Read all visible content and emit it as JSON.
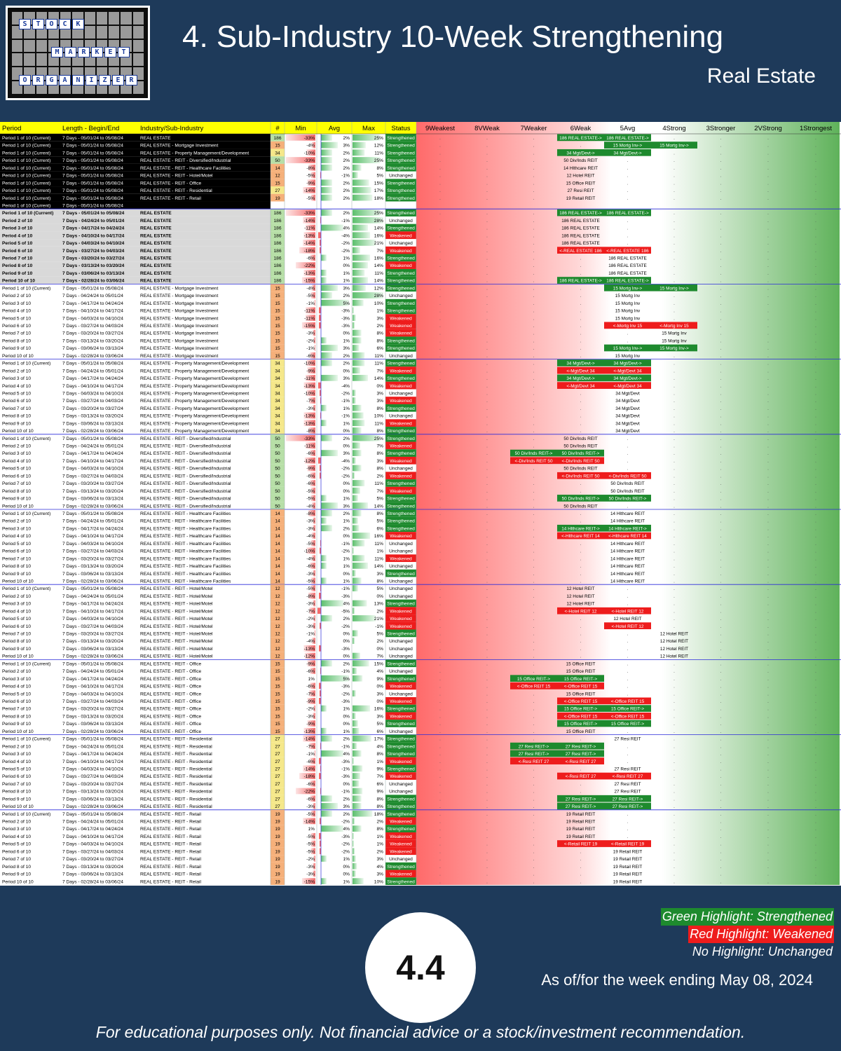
{
  "brand": {
    "rows": [
      [
        "S",
        "T",
        "O",
        "C",
        "K"
      ],
      [
        "M",
        "A",
        "R",
        "K",
        "E",
        "T"
      ],
      [
        "O",
        "R",
        "G",
        "A",
        "N",
        "I",
        "Z",
        "E",
        "R"
      ]
    ]
  },
  "header": {
    "title": "4. Sub-Industry 10-Week Strengthening",
    "subtitle": "Real Estate"
  },
  "table": {
    "columns": [
      "Period",
      "Length - Begin/End",
      "Industry/Sub-Industry",
      "#",
      "Min",
      "Avg",
      "Max",
      "Status",
      "9Weakest",
      "8VWeak",
      "7Weaker",
      "6Weak",
      "5Avg",
      "4Strong",
      "3Stronger",
      "2VStrong",
      "1Strongest"
    ],
    "ranges": [
      "05/01/24 to 05/08/24",
      "04/24/24 to 05/01/24",
      "04/17/24 to 04/24/24",
      "04/10/24 to 04/17/24",
      "04/03/24 to 04/10/24",
      "03/27/24 to 04/03/24",
      "03/20/24 to 03/27/24",
      "03/13/24 to 03/20/24",
      "03/06/24 to 03/13/24",
      "02/28/24 to 03/06/24"
    ],
    "period_labels": [
      "Period 1 of 10 (Current)",
      "Period 2 of 10",
      "Period 3 of 10",
      "Period 4 of 10",
      "Period 5 of 10",
      "Period 6 of 10",
      "Period 7 of 10",
      "Period 8 of 10",
      "Period 9 of 10",
      "Period 10 of 10"
    ],
    "length_prefix": "7 Days - ",
    "summary": [
      {
        "ind": "REAL ESTATE",
        "n": 186,
        "min": "-33%",
        "avg": "2%",
        "max": "25%",
        "st": "Strengthened",
        "rank": [
          "186 REAL ESTATE->",
          "186 REAL ESTATE->"
        ]
      },
      {
        "ind": "REAL ESTATE - Mortgage Investment",
        "n": 15,
        "min": "-4%",
        "avg": "3%",
        "max": "12%",
        "st": "Strengthened",
        "rank": [
          "15 Mortg Inv->",
          "15 Mortg Inv->"
        ]
      },
      {
        "ind": "REAL ESTATE - Property Management/Development",
        "n": 34,
        "min": "-10%",
        "avg": "2%",
        "max": "11%",
        "st": "Strengthened",
        "rank": [
          "34 Mgt/Devt->",
          "34 Mgt/Devt->"
        ]
      },
      {
        "ind": "REAL ESTATE - REIT - Diversified/Industrial",
        "n": 50,
        "min": "-33%",
        "avg": "2%",
        "max": "25%",
        "st": "Strengthened",
        "rank": [
          "50 Div/Inds REIT"
        ]
      },
      {
        "ind": "REAL ESTATE - REIT - Healthcare Facilities",
        "n": 14,
        "min": "-8%",
        "avg": "2%",
        "max": "8%",
        "st": "Strengthened",
        "rank": [
          "14 Hlthcare REIT"
        ]
      },
      {
        "ind": "REAL ESTATE - REIT - Hotel/Motel",
        "n": 12,
        "min": "-5%",
        "avg": "-1%",
        "max": "5%",
        "st": "Unchanged",
        "rank": [
          "12 Hotel REIT"
        ]
      },
      {
        "ind": "REAL ESTATE - REIT - Office",
        "n": 15,
        "min": "-9%",
        "avg": "2%",
        "max": "15%",
        "st": "Strengthened",
        "rank": [
          "15 Office REIT"
        ]
      },
      {
        "ind": "REAL ESTATE - REIT - Residential",
        "n": 27,
        "min": "-14%",
        "avg": "2%",
        "max": "17%",
        "st": "Strengthened",
        "rank": [
          "27 Resi REIT"
        ]
      },
      {
        "ind": "REAL ESTATE - REIT - Retail",
        "n": 19,
        "min": "-5%",
        "avg": "2%",
        "max": "18%",
        "st": "Strengthened",
        "rank": [
          "19 Retail REIT"
        ]
      }
    ],
    "groups": [
      {
        "ind": "REAL ESTATE",
        "n": 186,
        "rows": [
          [
            "-33%",
            "2%",
            "25%",
            "Strengthened",
            "186 REAL ESTATE->",
            "186 REAL ESTATE->"
          ],
          [
            "-14%",
            "-1%",
            "28%",
            "Unchanged",
            "186 REAL ESTATE",
            ""
          ],
          [
            "-11%",
            "4%",
            "14%",
            "Strengthened",
            "186 REAL ESTATE",
            ""
          ],
          [
            "-13%",
            "-4%",
            "16%",
            "Weakened",
            "186 REAL ESTATE",
            ""
          ],
          [
            "-14%",
            "-2%",
            "21%",
            "Unchanged",
            "186 REAL ESTATE",
            ""
          ],
          [
            "-18%",
            "-2%",
            "7%",
            "Weakened",
            "<-REAL ESTATE 186",
            "<-REAL ESTATE 186"
          ],
          [
            "-6%",
            "1%",
            "16%",
            "Strengthened",
            "",
            "186 REAL ESTATE"
          ],
          [
            "-22%",
            "0%",
            "14%",
            "Weakened",
            "",
            "186 REAL ESTATE"
          ],
          [
            "-13%",
            "1%",
            "11%",
            "Strengthened",
            "",
            "186 REAL ESTATE"
          ],
          [
            "-15%",
            "1%",
            "14%",
            "Strengthened",
            "186 REAL ESTATE->",
            "186 REAL ESTATE->"
          ]
        ]
      },
      {
        "ind": "REAL ESTATE - Mortgage Investment",
        "n": 15,
        "rows": [
          [
            "-4%",
            "3%",
            "12%",
            "Strengthened",
            "15 Mortg Inv->",
            "15 Mortg Inv->"
          ],
          [
            "-5%",
            "2%",
            "28%",
            "Unchanged",
            "15 Mortg Inv",
            ""
          ],
          [
            "-1%",
            "5%",
            "10%",
            "Strengthened",
            "15 Mortg Inv",
            ""
          ],
          [
            "-11%",
            "-3%",
            "1%",
            "Strengthened",
            "15 Mortg Inv",
            ""
          ],
          [
            "-11%",
            "-3%",
            "3%",
            "Weakened",
            "15 Mortg Inv",
            ""
          ],
          [
            "-15%",
            "-3%",
            "2%",
            "Weakened",
            "<-Mortg Inv 15",
            "<-Mortg Inv 15"
          ],
          [
            "-3%",
            "0%",
            "8%",
            "Weakened",
            "",
            "15 Mortg Inv"
          ],
          [
            "-2%",
            "1%",
            "8%",
            "Strengthened",
            "",
            "15 Mortg Inv"
          ],
          [
            "-1%",
            "3%",
            "6%",
            "Strengthened",
            "15 Mortg Inv->",
            "15 Mortg Inv->"
          ],
          [
            "-6%",
            "2%",
            "11%",
            "Unchanged",
            "15 Mortg Inv",
            ""
          ]
        ]
      },
      {
        "ind": "REAL ESTATE - Property Management/Development",
        "n": 34,
        "rows": [
          [
            "-10%",
            "2%",
            "11%",
            "Strengthened",
            "34 Mgt/Devt->",
            "34 Mgt/Devt->"
          ],
          [
            "-9%",
            "0%",
            "7%",
            "Weakened",
            "<-Mgt/Devt 34",
            "<-Mgt/Devt 34"
          ],
          [
            "-11%",
            "3%",
            "14%",
            "Strengthened",
            "34 Mgt/Devt->",
            "34 Mgt/Devt->"
          ],
          [
            "-13%",
            "-4%",
            "0%",
            "Weakened",
            "<-Mgt/Devt 34",
            "<-Mgt/Devt 34"
          ],
          [
            "-10%",
            "-2%",
            "3%",
            "Unchanged",
            "",
            "34 Mgt/Devt"
          ],
          [
            "-7%",
            "-1%",
            "3%",
            "Weakened",
            "",
            "34 Mgt/Devt"
          ],
          [
            "-3%",
            "1%",
            "8%",
            "Strengthened",
            "",
            "34 Mgt/Devt"
          ],
          [
            "-13%",
            "-1%",
            "10%",
            "Unchanged",
            "",
            "34 Mgt/Devt"
          ],
          [
            "-13%",
            "1%",
            "11%",
            "Weakened",
            "",
            "34 Mgt/Devt"
          ],
          [
            "-8%",
            "0%",
            "8%",
            "Strengthened",
            "",
            "34 Mgt/Devt"
          ]
        ]
      },
      {
        "ind": "REAL ESTATE - REIT - Diversified/Industrial",
        "n": 50,
        "rows": [
          [
            "-33%",
            "2%",
            "25%",
            "Strengthened",
            "50 Div/Inds REIT",
            ""
          ],
          [
            "-11%",
            "0%",
            "7%",
            "Weakened",
            "50 Div/Inds REIT",
            ""
          ],
          [
            "-6%",
            "3%",
            "8%",
            "Strengthened",
            "50 Div/Inds REIT->",
            "50 Div/Inds REIT->"
          ],
          [
            "-12%",
            "-4%",
            "3%",
            "Weakened",
            "<-Div/Inds REIT 50",
            "<-Div/Inds REIT 50"
          ],
          [
            "-9%",
            "-2%",
            "8%",
            "Unchanged",
            "50 Div/Inds REIT",
            ""
          ],
          [
            "-6%",
            "-2%",
            "2%",
            "Weakened",
            "<-Div/Inds REIT 50",
            "<-Div/Inds REIT 50"
          ],
          [
            "-6%",
            "0%",
            "11%",
            "Strengthened",
            "",
            "50 Div/Inds REIT"
          ],
          [
            "-5%",
            "0%",
            "7%",
            "Weakened",
            "",
            "50 Div/Inds REIT"
          ],
          [
            "-5%",
            "1%",
            "5%",
            "Strengthened",
            "50 Div/Inds REIT->",
            "50 Div/Inds REIT->"
          ],
          [
            "-4%",
            "3%",
            "14%",
            "Strengthened",
            "50 Div/Inds REIT",
            ""
          ]
        ]
      },
      {
        "ind": "REAL ESTATE - REIT - Healthcare Facilities",
        "n": 14,
        "rows": [
          [
            "-8%",
            "2%",
            "8%",
            "Strengthened",
            "",
            "14 Hlthcare REIT"
          ],
          [
            "-3%",
            "1%",
            "5%",
            "Strengthened",
            "",
            "14 Hlthcare REIT"
          ],
          [
            "-3%",
            "2%",
            "6%",
            "Strengthened",
            "14 Hlthcare REIT->",
            "14 Hlthcare REIT->"
          ],
          [
            "-4%",
            "0%",
            "16%",
            "Weakened",
            "<-Hlthcare REIT 14",
            "<-Hlthcare REIT 14"
          ],
          [
            "-5%",
            "-1%",
            "11%",
            "Unchanged",
            "",
            "14 Hlthcare REIT"
          ],
          [
            "-10%",
            "-2%",
            "1%",
            "Unchanged",
            "",
            "14 Hlthcare REIT"
          ],
          [
            "-4%",
            "1%",
            "11%",
            "Weakened",
            "",
            "14 Hlthcare REIT"
          ],
          [
            "-6%",
            "1%",
            "14%",
            "Unchanged",
            "",
            "14 Hlthcare REIT"
          ],
          [
            "-3%",
            "0%",
            "3%",
            "Strengthened",
            "",
            "14 Hlthcare REIT"
          ],
          [
            "-5%",
            "1%",
            "8%",
            "Unchanged",
            "",
            "14 Hlthcare REIT"
          ]
        ]
      },
      {
        "ind": "REAL ESTATE - REIT - Hotel/Motel",
        "n": 12,
        "rows": [
          [
            "-5%",
            "-1%",
            "5%",
            "Unchanged",
            "12 Hotel REIT",
            ""
          ],
          [
            "-8%",
            "-3%",
            "0%",
            "Unchanged",
            "12 Hotel REIT",
            ""
          ],
          [
            "-3%",
            "4%",
            "13%",
            "Strengthened",
            "12 Hotel REIT",
            ""
          ],
          [
            "-7%",
            "-5%",
            "2%",
            "Weakened",
            "<-Hotel REIT 12",
            "<-Hotel REIT 12"
          ],
          [
            "-2%",
            "2%",
            "21%",
            "Weakened",
            "",
            "12 Hotel REIT"
          ],
          [
            "-3%",
            "-2%",
            "-1%",
            "Weakened",
            "",
            "<-Hotel REIT 12"
          ],
          [
            "-1%",
            "0%",
            "5%",
            "Strengthened",
            "",
            "12 Hotel REIT"
          ],
          [
            "-4%",
            "0%",
            "2%",
            "Unchanged",
            "",
            "12 Hotel REIT"
          ],
          [
            "-13%",
            "-3%",
            "0%",
            "Unchanged",
            "",
            "12 Hotel REIT"
          ],
          [
            "-12%",
            "0%",
            "7%",
            "Unchanged",
            "",
            "12 Hotel REIT"
          ]
        ]
      },
      {
        "ind": "REAL ESTATE - REIT - Office",
        "n": 15,
        "rows": [
          [
            "-9%",
            "2%",
            "15%",
            "Strengthened",
            "15 Office REIT",
            ""
          ],
          [
            "-6%",
            "-1%",
            "4%",
            "Unchanged",
            "15 Office REIT",
            ""
          ],
          [
            "1%",
            "5%",
            "9%",
            "Strengthened",
            "15 Office REIT->",
            "15 Office REIT->"
          ],
          [
            "-6%",
            "-3%",
            "0%",
            "Weakened",
            "<-Office REIT 15",
            "<-Office REIT 15"
          ],
          [
            "-7%",
            "-2%",
            "3%",
            "Unchanged",
            "15 Office REIT",
            ""
          ],
          [
            "-9%",
            "-3%",
            "0%",
            "Weakened",
            "<-Office REIT 15",
            "<-Office REIT 15"
          ],
          [
            "-2%",
            "1%",
            "16%",
            "Strengthened",
            "15 Office REIT->",
            "15 Office REIT->"
          ],
          [
            "-3%",
            "0%",
            "3%",
            "Weakened",
            "<-Office REIT 15",
            "<-Office REIT 15"
          ],
          [
            "-9%",
            "0%",
            "5%",
            "Strengthened",
            "15 Office REIT->",
            "15 Office REIT->"
          ],
          [
            "-13%",
            "1%",
            "6%",
            "Unchanged",
            "15 Office REIT",
            ""
          ]
        ]
      },
      {
        "ind": "REAL ESTATE - REIT - Residential",
        "n": 27,
        "rows": [
          [
            "-14%",
            "2%",
            "17%",
            "Strengthened",
            "",
            "27 Resi REIT"
          ],
          [
            "-7%",
            "-1%",
            "4%",
            "Strengthened",
            "27 Resi REIT->",
            "27 Resi REIT->"
          ],
          [
            "-1%",
            "4%",
            "8%",
            "Strengthened",
            "27 Resi REIT->",
            "27 Resi REIT->"
          ],
          [
            "-6%",
            "-3%",
            "1%",
            "Weakened",
            "<-Resi REIT 27",
            "<-Resi REIT 27"
          ],
          [
            "-14%",
            "-1%",
            "9%",
            "Strengthened",
            "27 Resi REIT",
            ""
          ],
          [
            "-18%",
            "-3%",
            "7%",
            "Weakened",
            "<-Resi REIT 27",
            "<-Resi REIT 27"
          ],
          [
            "-6%",
            "0%",
            "6%",
            "Unchanged",
            "",
            "27 Resi REIT"
          ],
          [
            "-22%",
            "-1%",
            "9%",
            "Unchanged",
            "",
            "27 Resi REIT"
          ],
          [
            "-6%",
            "2%",
            "8%",
            "Strengthened",
            "27 Resi REIT->",
            "27 Resi REIT->"
          ],
          [
            "-3%",
            "3%",
            "8%",
            "Strengthened",
            "27 Resi REIT->",
            "27 Resi REIT->"
          ]
        ]
      },
      {
        "ind": "REAL ESTATE - REIT - Retail",
        "n": 19,
        "rows": [
          [
            "-5%",
            "2%",
            "18%",
            "Strengthened",
            "19 Retail REIT",
            ""
          ],
          [
            "-14%",
            "-2%",
            "2%",
            "Weakened",
            "19 Retail REIT",
            ""
          ],
          [
            "1%",
            "4%",
            "8%",
            "Strengthened",
            "19 Retail REIT",
            ""
          ],
          [
            "-5%",
            "-3%",
            "1%",
            "Weakened",
            "19 Retail REIT",
            ""
          ],
          [
            "-5%",
            "-2%",
            "1%",
            "Weakened",
            "<-Retail REIT 19",
            "<-Retail REIT 19"
          ],
          [
            "-5%",
            "-2%",
            "2%",
            "Weakened",
            "",
            "19 Retail REIT"
          ],
          [
            "-2%",
            "1%",
            "3%",
            "Unchanged",
            "",
            "19 Retail REIT"
          ],
          [
            "-3%",
            "0%",
            "4%",
            "Strengthened",
            "",
            "19 Retail REIT"
          ],
          [
            "-3%",
            "0%",
            "3%",
            "Weakened",
            "",
            "19 Retail REIT"
          ],
          [
            "-15%",
            "1%",
            "10%",
            "Strengthened",
            "",
            "19 Retail REIT"
          ]
        ]
      }
    ]
  },
  "legend": {
    "green": "Green Highlight: Strengthened",
    "red": "Red Highlight: Weakened",
    "none": "No Highlight: Unchanged"
  },
  "footer": {
    "badge": "4.4",
    "as_of": "As of/for the week ending May 08, 2024",
    "disclaimer": "For educational purposes only. Not financial advice or a stock/investment recommendation."
  },
  "colors": {
    "background": "#1e3a5a",
    "strengthened": "#1e8a2e",
    "weakened": "#ee1c1c",
    "header_yellow": "#ffff00"
  }
}
